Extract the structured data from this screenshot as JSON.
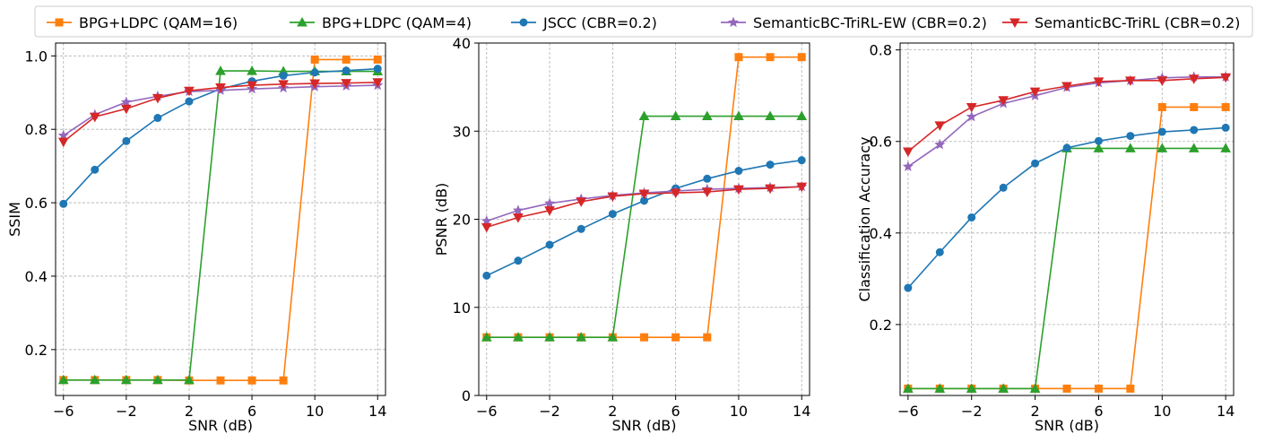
{
  "legend": [
    {
      "name": "BPG+LDPC (QAM=16)",
      "color": "#ff7f0e",
      "marker": "square"
    },
    {
      "name": "BPG+LDPC (QAM=4)",
      "color": "#2ca02c",
      "marker": "triangle-up"
    },
    {
      "name": "JSCC (CBR=0.2)",
      "color": "#1f77b4",
      "marker": "circle"
    },
    {
      "name": "SemanticBC-TriRL-EW (CBR=0.2)",
      "color": "#9467bd",
      "marker": "star"
    },
    {
      "name": "SemanticBC-TriRL (CBR=0.2)",
      "color": "#d62728",
      "marker": "triangle-down"
    }
  ],
  "chart_data": [
    {
      "type": "line",
      "title": "",
      "xlabel": "SNR (dB)",
      "ylabel": "SSIM",
      "xlim": [
        -6.5,
        14.5
      ],
      "ylim": [
        0.075,
        1.035
      ],
      "xticks": [
        -6,
        -2,
        2,
        6,
        10,
        14
      ],
      "xtick_labels": [
        "−6",
        "−2",
        "2",
        "6",
        "10",
        "14"
      ],
      "yticks": [
        0.2,
        0.4,
        0.6,
        0.8,
        1.0
      ],
      "ytick_labels": [
        "0.2",
        "0.4",
        "0.6",
        "0.8",
        "1.0"
      ],
      "grid": true,
      "x": [
        -6,
        -4,
        -2,
        0,
        2,
        4,
        6,
        8,
        10,
        12,
        14
      ],
      "series": [
        {
          "name": "BPG+LDPC (QAM=16)",
          "values": [
            0.117,
            0.117,
            0.117,
            0.117,
            0.116,
            0.116,
            0.116,
            0.116,
            0.99,
            0.99,
            0.99
          ]
        },
        {
          "name": "BPG+LDPC (QAM=4)",
          "values": [
            0.117,
            0.117,
            0.117,
            0.117,
            0.117,
            0.959,
            0.959,
            0.958,
            0.958,
            0.958,
            0.958
          ]
        },
        {
          "name": "JSCC (CBR=0.2)",
          "values": [
            0.597,
            0.69,
            0.768,
            0.831,
            0.876,
            0.91,
            0.931,
            0.946,
            0.955,
            0.96,
            0.965
          ]
        },
        {
          "name": "SemanticBC-TriRL-EW (CBR=0.2)",
          "values": [
            0.783,
            0.84,
            0.874,
            0.89,
            0.903,
            0.906,
            0.91,
            0.913,
            0.916,
            0.918,
            0.92
          ]
        },
        {
          "name": "SemanticBC-TriRL (CBR=0.2)",
          "values": [
            0.766,
            0.834,
            0.856,
            0.885,
            0.905,
            0.914,
            0.92,
            0.923,
            0.925,
            0.926,
            0.928
          ]
        }
      ]
    },
    {
      "type": "line",
      "title": "",
      "xlabel": "SNR (dB)",
      "ylabel": "PSNR (dB)",
      "xlim": [
        -6.5,
        14.5
      ],
      "ylim": [
        0,
        40
      ],
      "xticks": [
        -6,
        -2,
        2,
        6,
        10,
        14
      ],
      "xtick_labels": [
        "−6",
        "−2",
        "2",
        "6",
        "10",
        "14"
      ],
      "yticks": [
        0,
        10,
        20,
        30,
        40
      ],
      "ytick_labels": [
        "0",
        "10",
        "20",
        "30",
        "40"
      ],
      "grid": true,
      "x": [
        -6,
        -4,
        -2,
        0,
        2,
        4,
        6,
        8,
        10,
        12,
        14
      ],
      "series": [
        {
          "name": "BPG+LDPC (QAM=16)",
          "values": [
            6.6,
            6.6,
            6.6,
            6.6,
            6.6,
            6.6,
            6.6,
            6.6,
            38.4,
            38.4,
            38.4
          ]
        },
        {
          "name": "BPG+LDPC (QAM=4)",
          "values": [
            6.6,
            6.6,
            6.6,
            6.6,
            6.6,
            31.7,
            31.7,
            31.7,
            31.7,
            31.7,
            31.7
          ]
        },
        {
          "name": "JSCC (CBR=0.2)",
          "values": [
            13.6,
            15.3,
            17.1,
            18.9,
            20.6,
            22.1,
            23.5,
            24.6,
            25.5,
            26.2,
            26.7
          ]
        },
        {
          "name": "SemanticBC-TriRL-EW (CBR=0.2)",
          "values": [
            19.8,
            21.0,
            21.8,
            22.3,
            22.7,
            23.0,
            23.2,
            23.4,
            23.5,
            23.6,
            23.7
          ]
        },
        {
          "name": "SemanticBC-TriRL (CBR=0.2)",
          "values": [
            19.1,
            20.2,
            21.0,
            22.0,
            22.6,
            22.9,
            23.0,
            23.1,
            23.4,
            23.5,
            23.7
          ]
        }
      ]
    },
    {
      "type": "line",
      "title": "",
      "xlabel": "SNR (dB)",
      "ylabel": "Classification Accuracy",
      "xlim": [
        -6.5,
        14.5
      ],
      "ylim": [
        0.045,
        0.815
      ],
      "xticks": [
        -6,
        -2,
        2,
        6,
        10,
        14
      ],
      "xtick_labels": [
        "−6",
        "−2",
        "2",
        "6",
        "10",
        "14"
      ],
      "yticks": [
        0.2,
        0.4,
        0.6,
        0.8
      ],
      "ytick_labels": [
        "0.2",
        "0.4",
        "0.6",
        "0.8"
      ],
      "grid": true,
      "x": [
        -6,
        -4,
        -2,
        0,
        2,
        4,
        6,
        8,
        10,
        12,
        14
      ],
      "series": [
        {
          "name": "BPG+LDPC (QAM=16)",
          "values": [
            0.06,
            0.06,
            0.06,
            0.06,
            0.06,
            0.06,
            0.06,
            0.06,
            0.675,
            0.675,
            0.675
          ]
        },
        {
          "name": "BPG+LDPC (QAM=4)",
          "values": [
            0.06,
            0.06,
            0.06,
            0.06,
            0.06,
            0.585,
            0.585,
            0.585,
            0.585,
            0.585,
            0.585
          ]
        },
        {
          "name": "JSCC (CBR=0.2)",
          "values": [
            0.28,
            0.358,
            0.434,
            0.499,
            0.552,
            0.586,
            0.601,
            0.612,
            0.621,
            0.625,
            0.63
          ]
        },
        {
          "name": "SemanticBC-TriRL-EW (CBR=0.2)",
          "values": [
            0.545,
            0.593,
            0.654,
            0.683,
            0.7,
            0.718,
            0.728,
            0.733,
            0.739,
            0.741,
            0.741
          ]
        },
        {
          "name": "SemanticBC-TriRL (CBR=0.2)",
          "values": [
            0.578,
            0.635,
            0.675,
            0.69,
            0.709,
            0.721,
            0.731,
            0.733,
            0.733,
            0.737,
            0.74
          ]
        }
      ]
    }
  ]
}
